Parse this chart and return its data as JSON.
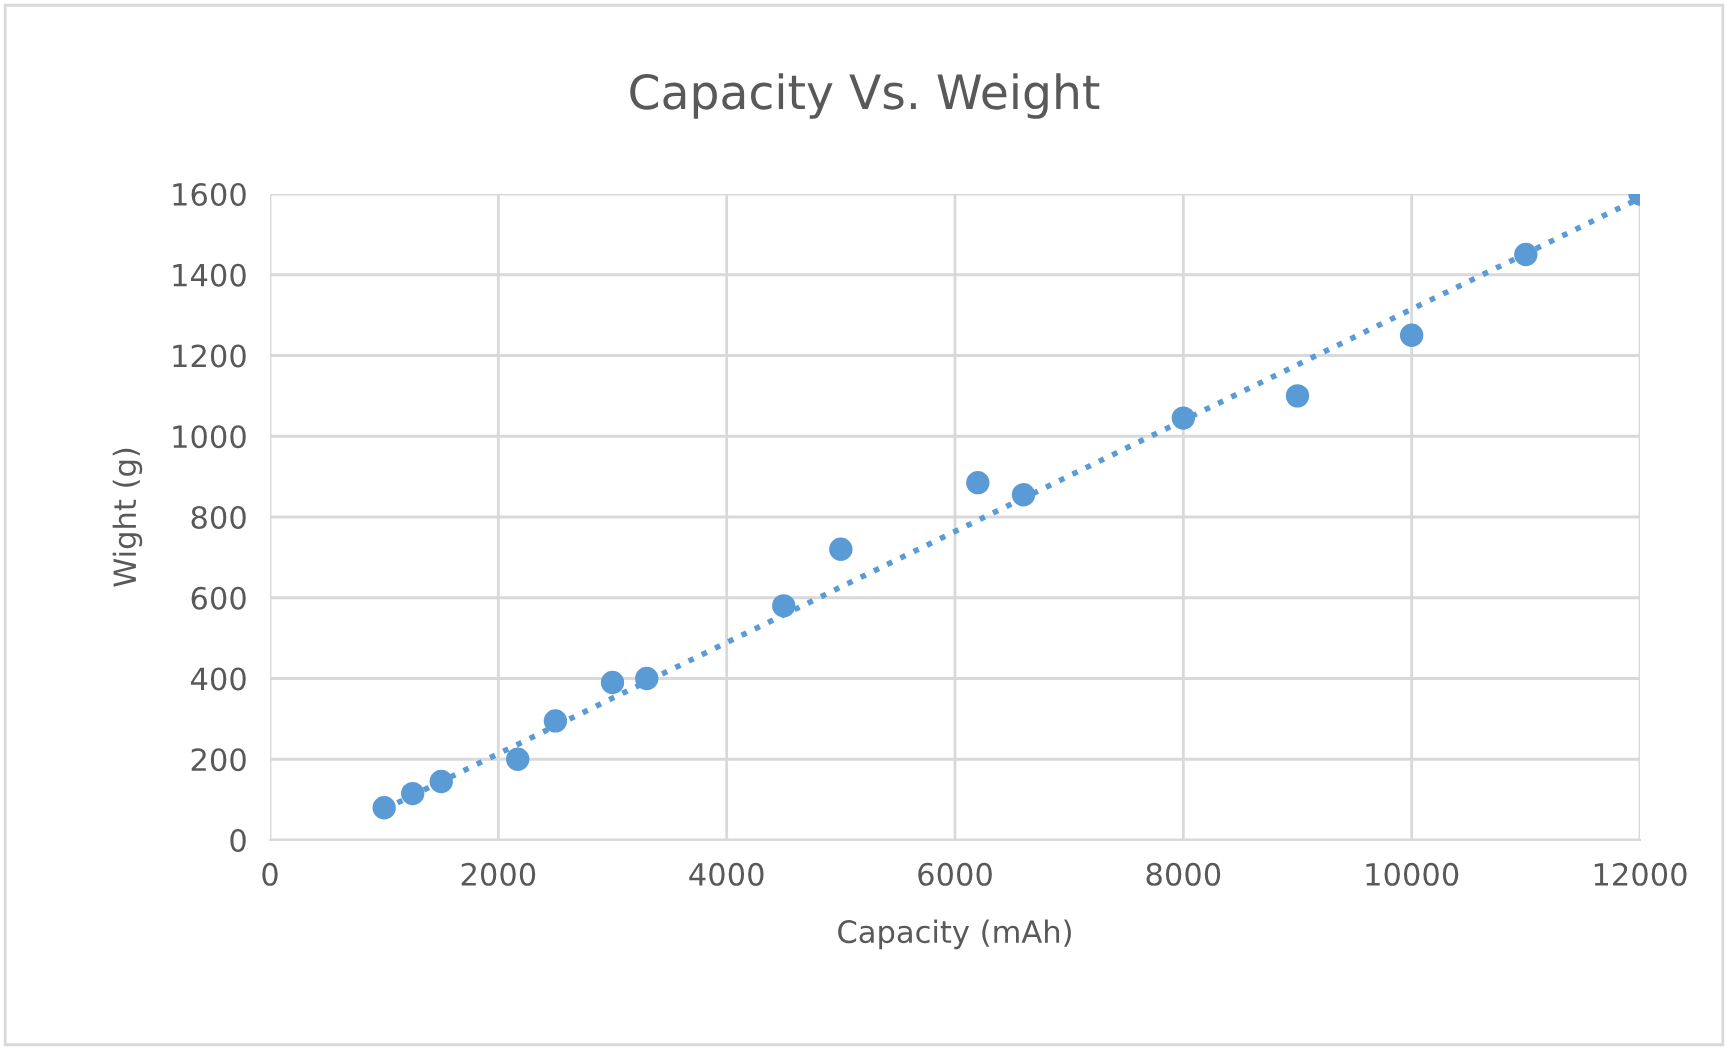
{
  "chart_data": {
    "type": "scatter",
    "title": "Capacity Vs. Weight",
    "xlabel": "Capacity (mAh)",
    "ylabel": "Wight (g)",
    "series": [
      {
        "color": "#5b9bd5",
        "marker": "circle",
        "x": [
          1000,
          1250,
          1500,
          2170,
          2500,
          3000,
          3300,
          4500,
          5000,
          6200,
          6600,
          8000,
          9000,
          10000,
          11000,
          12000
        ],
        "values": [
          80,
          115,
          145,
          200,
          295,
          390,
          400,
          580,
          720,
          885,
          855,
          1045,
          1100,
          1250,
          1450,
          1600
        ]
      },
      {
        "type": "line",
        "color": "#5b9bd5",
        "line_style": "dotted",
        "x": [
          1000,
          12000
        ],
        "values": [
          76,
          1590
        ]
      }
    ],
    "xlim": [
      0,
      12000
    ],
    "xticks": [
      0,
      2000,
      4000,
      6000,
      8000,
      10000,
      12000
    ],
    "ylim": [
      0,
      1600
    ],
    "yticks": [
      0,
      200,
      400,
      600,
      800,
      1000,
      1200,
      1400,
      1600
    ],
    "grid": true,
    "legend": false
  }
}
